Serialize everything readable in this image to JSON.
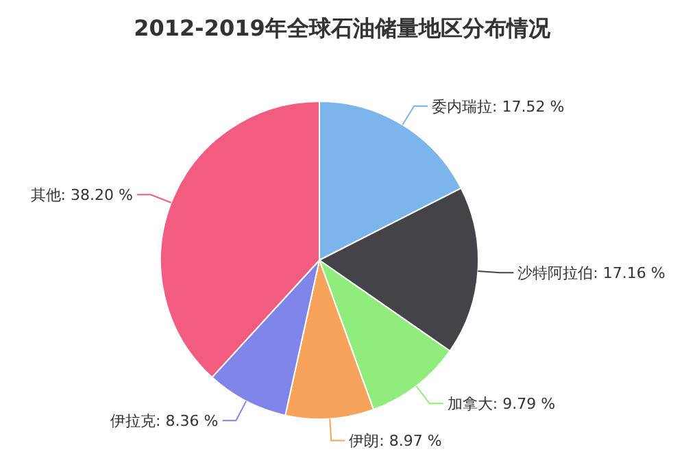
{
  "chart_data": {
    "type": "pie",
    "title": "2012-2019年全球石油储量地区分布情况",
    "categories": [
      "委内瑞拉",
      "沙特阿拉伯",
      "加拿大",
      "伊朗",
      "伊拉克",
      "其他"
    ],
    "values": [
      17.52,
      17.16,
      9.79,
      8.97,
      8.36,
      38.2
    ],
    "value_labels": [
      "17.52 %",
      "17.16 %",
      "9.79 %",
      "8.97 %",
      "8.36 %",
      "38.20 %"
    ],
    "colors": [
      "#7cb5ec",
      "#434348",
      "#90ed7d",
      "#f7a35c",
      "#8085e9",
      "#f15c80"
    ]
  }
}
